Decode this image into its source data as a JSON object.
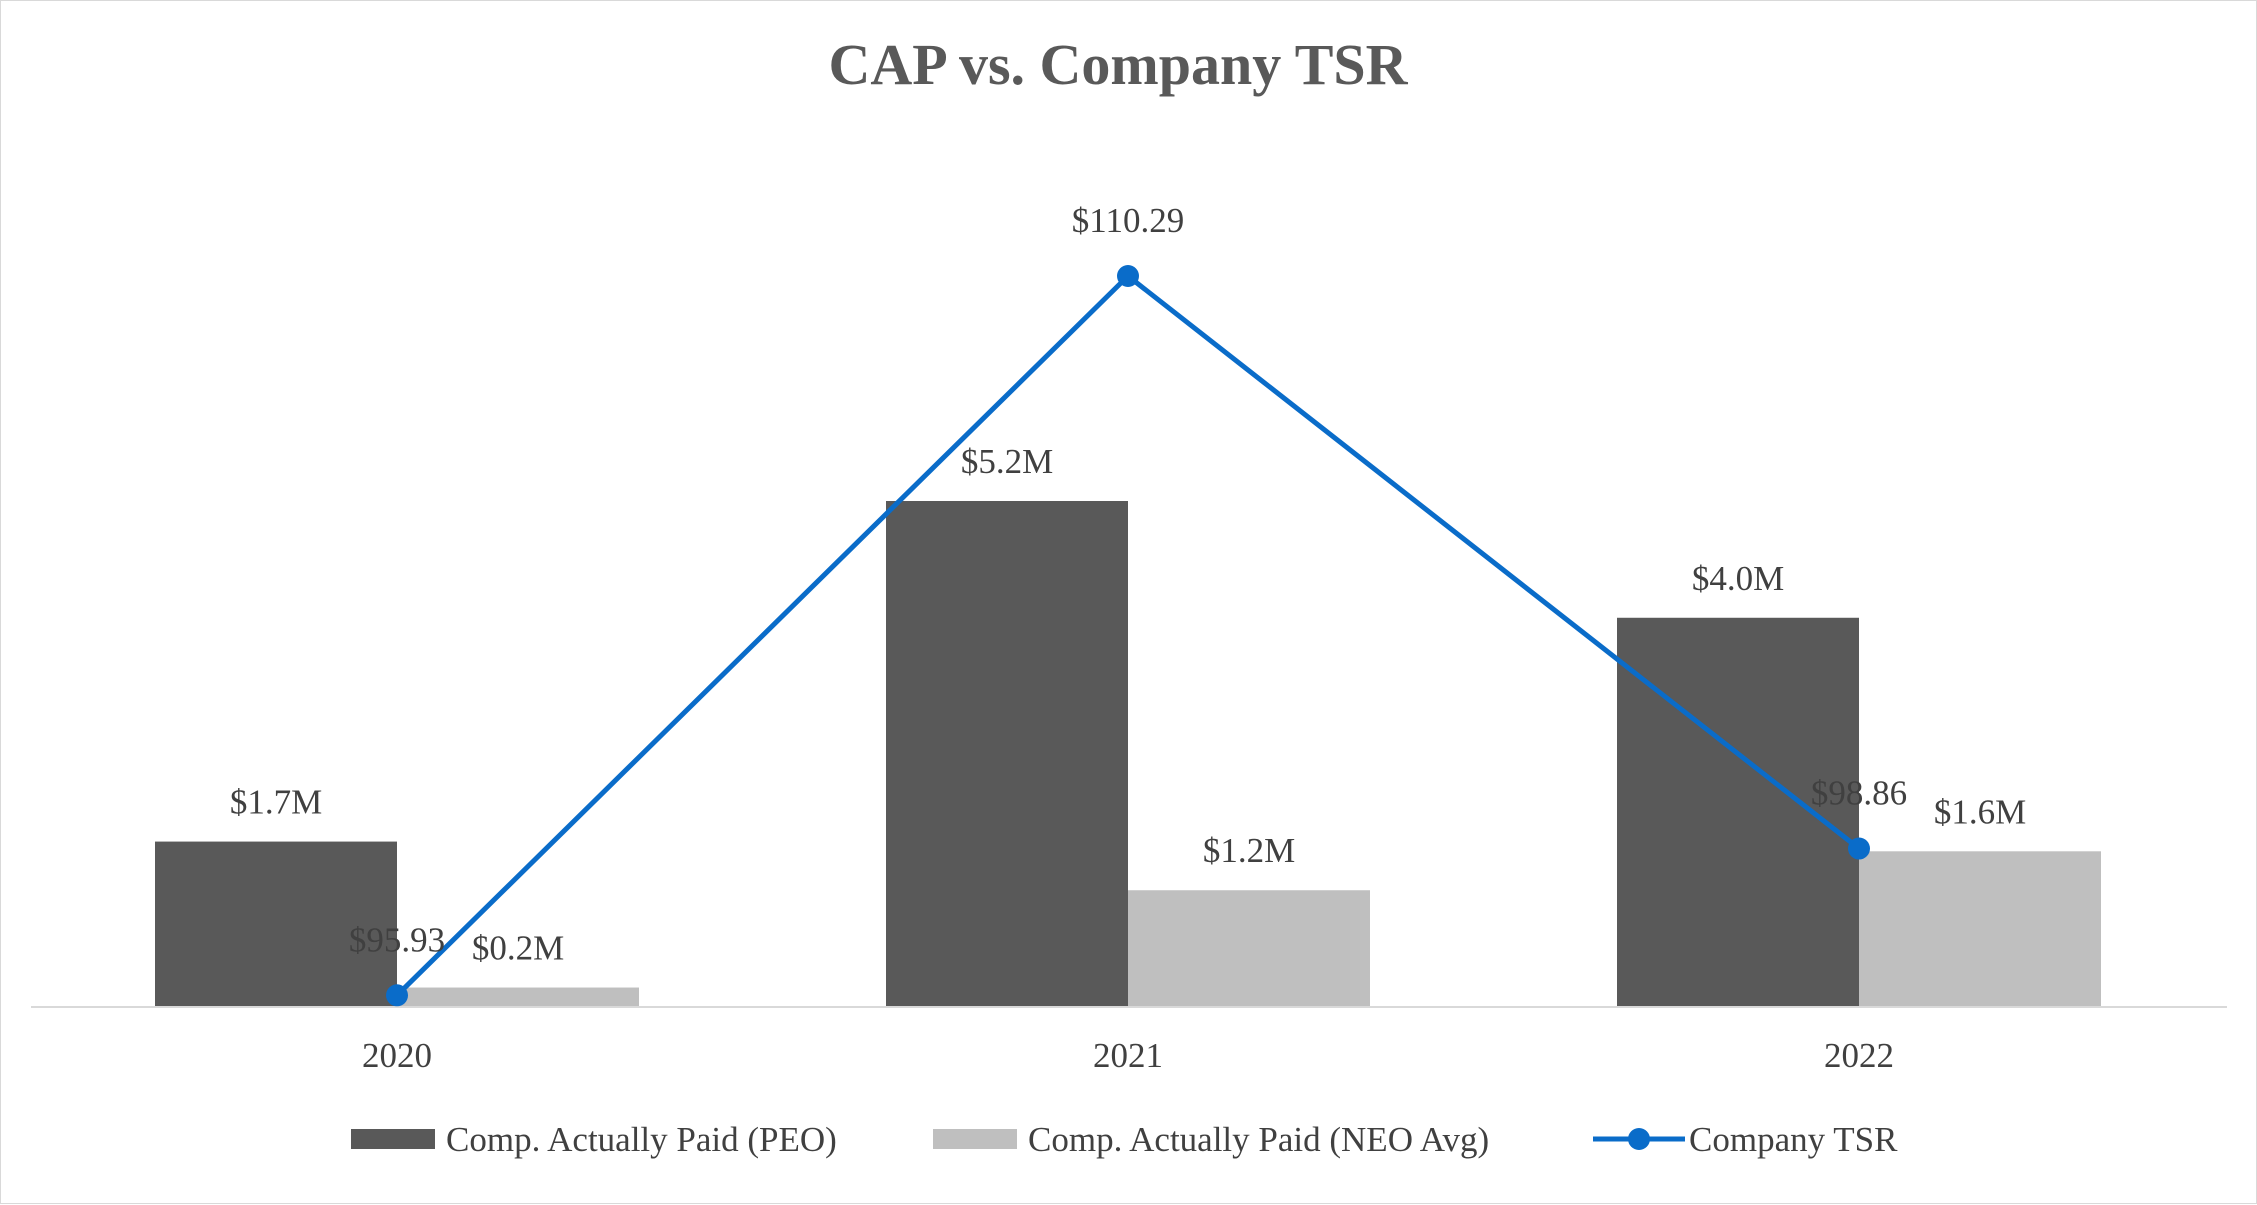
{
  "chart_data": {
    "type": "bar",
    "title": "CAP vs. Company TSR",
    "categories": [
      "2020",
      "2021",
      "2022"
    ],
    "series": [
      {
        "name": "Comp. Actually Paid (PEO)",
        "kind": "bar",
        "color": "#595959",
        "values": [
          1.7,
          5.2,
          4.0
        ],
        "labels": [
          "$1.7M",
          "$5.2M",
          "$4.0M"
        ]
      },
      {
        "name": "Comp. Actually Paid (NEO Avg)",
        "kind": "bar",
        "color": "#bfbfbf",
        "values": [
          0.2,
          1.2,
          1.6
        ],
        "labels": [
          "$0.2M",
          "$1.2M",
          "$1.6M"
        ]
      },
      {
        "name": "Company TSR",
        "kind": "line",
        "color": "#0a6cc9",
        "values": [
          95.93,
          110.29,
          98.86
        ],
        "labels": [
          "$95.93",
          "$110.29",
          "$98.86"
        ]
      }
    ],
    "ylim": [
      0,
      5.2
    ],
    "y2lim": [
      0,
      110.29
    ],
    "grid": false,
    "legend_position": "bottom"
  }
}
